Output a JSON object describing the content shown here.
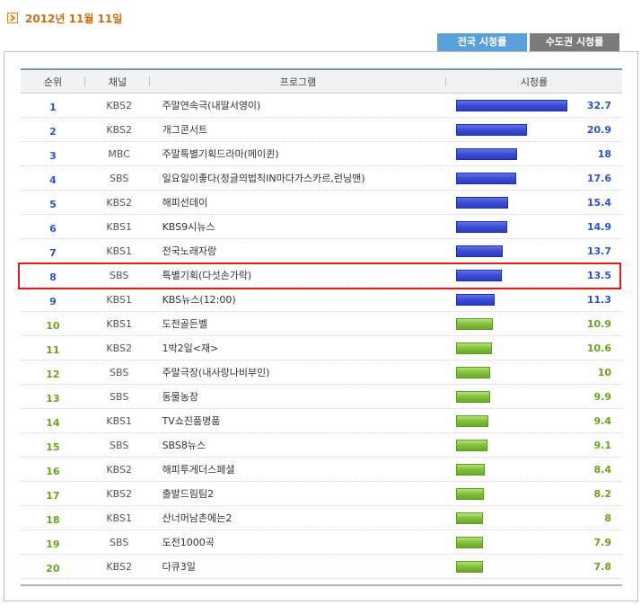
{
  "header": {
    "date": "2012년 11월 11일"
  },
  "tabs": [
    {
      "label": "전국 시청률",
      "active": true
    },
    {
      "label": "수도권 시청률",
      "active": false
    }
  ],
  "columns": {
    "rank": "순위",
    "channel": "채널",
    "program": "프로그램",
    "rating": "시청률"
  },
  "rows": [
    {
      "rank": "1",
      "channel": "KBS2",
      "program": "주말연속극(내딸서영이)",
      "rating": "32.7",
      "value": 32.7,
      "tier": "top"
    },
    {
      "rank": "2",
      "channel": "KBS2",
      "program": "개그콘서트",
      "rating": "20.9",
      "value": 20.9,
      "tier": "top"
    },
    {
      "rank": "3",
      "channel": "MBC",
      "program": "주말특별기획드라마(메이퀸)",
      "rating": "18",
      "value": 18,
      "tier": "top"
    },
    {
      "rank": "4",
      "channel": "SBS",
      "program": "일요일이좋다(정글의법칙IN마다가스카르,런닝맨)",
      "rating": "17.6",
      "value": 17.6,
      "tier": "top"
    },
    {
      "rank": "5",
      "channel": "KBS2",
      "program": "해피선데이",
      "rating": "15.4",
      "value": 15.4,
      "tier": "top"
    },
    {
      "rank": "6",
      "channel": "KBS1",
      "program": "KBS9시뉴스",
      "rating": "14.9",
      "value": 14.9,
      "tier": "top"
    },
    {
      "rank": "7",
      "channel": "KBS1",
      "program": "전국노래자랑",
      "rating": "13.7",
      "value": 13.7,
      "tier": "top"
    },
    {
      "rank": "8",
      "channel": "SBS",
      "program": "특별기획(다섯손가락)",
      "rating": "13.5",
      "value": 13.5,
      "tier": "top",
      "highlighted": true
    },
    {
      "rank": "9",
      "channel": "KBS1",
      "program": "KBS뉴스(12:00)",
      "rating": "11.3",
      "value": 11.3,
      "tier": "top"
    },
    {
      "rank": "10",
      "channel": "KBS1",
      "program": "도전골든벨",
      "rating": "10.9",
      "value": 10.9,
      "tier": "low"
    },
    {
      "rank": "11",
      "channel": "KBS2",
      "program": "1박2일<재>",
      "rating": "10.6",
      "value": 10.6,
      "tier": "low"
    },
    {
      "rank": "12",
      "channel": "SBS",
      "program": "주말극장(내사랑나비부인)",
      "rating": "10",
      "value": 10,
      "tier": "low"
    },
    {
      "rank": "13",
      "channel": "SBS",
      "program": "동물농장",
      "rating": "9.9",
      "value": 9.9,
      "tier": "low"
    },
    {
      "rank": "14",
      "channel": "KBS1",
      "program": "TV쇼진품명품",
      "rating": "9.4",
      "value": 9.4,
      "tier": "low"
    },
    {
      "rank": "15",
      "channel": "SBS",
      "program": "SBS8뉴스",
      "rating": "9.1",
      "value": 9.1,
      "tier": "low"
    },
    {
      "rank": "16",
      "channel": "KBS2",
      "program": "해피투게더스페셜",
      "rating": "8.4",
      "value": 8.4,
      "tier": "low"
    },
    {
      "rank": "17",
      "channel": "KBS2",
      "program": "출발드림팀2",
      "rating": "8.2",
      "value": 8.2,
      "tier": "low"
    },
    {
      "rank": "18",
      "channel": "KBS1",
      "program": "산너머남촌에는2",
      "rating": "8",
      "value": 8,
      "tier": "low"
    },
    {
      "rank": "19",
      "channel": "SBS",
      "program": "도전1000곡",
      "rating": "7.9",
      "value": 7.9,
      "tier": "low"
    },
    {
      "rank": "20",
      "channel": "KBS2",
      "program": "다큐3일",
      "rating": "7.8",
      "value": 7.8,
      "tier": "low"
    }
  ],
  "colors": {
    "top_bar": "#3d4fd6",
    "low_bar": "#84c23b",
    "top_text": "#2b54c8",
    "low_text": "#6aa11e",
    "highlight": "#e21b1b",
    "date": "#c96f14"
  }
}
